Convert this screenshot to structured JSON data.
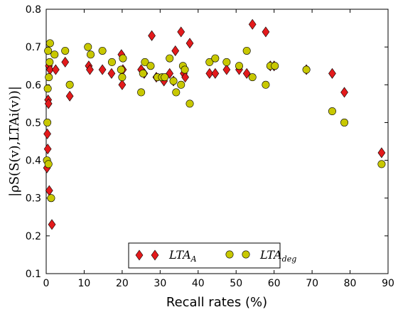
{
  "chart_data": {
    "type": "scatter",
    "xlabel": "Recall rates (%)",
    "ylabel": "|ρS(S(v),LTAi(v))|",
    "xlim": [
      0,
      90
    ],
    "ylim": [
      0.1,
      0.8
    ],
    "x_ticks": [
      "0",
      "10",
      "20",
      "30",
      "40",
      "50",
      "60",
      "70",
      "80",
      "90"
    ],
    "y_ticks": [
      "0.1",
      "0.2",
      "0.3",
      "0.4",
      "0.5",
      "0.6",
      "0.7",
      "0.8"
    ],
    "grid": false,
    "legend_position": "bottom-center",
    "series": [
      {
        "name": "LTA_A",
        "legend_main": "LTA",
        "legend_sub": "A",
        "marker": "diamond",
        "color": "#e31a1c",
        "points": [
          [
            0.2,
            0.38
          ],
          [
            0.3,
            0.47
          ],
          [
            0.4,
            0.43
          ],
          [
            0.5,
            0.56
          ],
          [
            0.6,
            0.55
          ],
          [
            0.7,
            0.65
          ],
          [
            0.8,
            0.32
          ],
          [
            1.0,
            0.64
          ],
          [
            1.5,
            0.23
          ],
          [
            2.5,
            0.64
          ],
          [
            5.0,
            0.66
          ],
          [
            6.2,
            0.57
          ],
          [
            11.2,
            0.65
          ],
          [
            11.5,
            0.64
          ],
          [
            14.8,
            0.64
          ],
          [
            17.2,
            0.63
          ],
          [
            19.8,
            0.68
          ],
          [
            20.0,
            0.6
          ],
          [
            20.2,
            0.64
          ],
          [
            25.0,
            0.64
          ],
          [
            25.8,
            0.63
          ],
          [
            27.8,
            0.73
          ],
          [
            29.0,
            0.62
          ],
          [
            31.0,
            0.61
          ],
          [
            32.5,
            0.63
          ],
          [
            33.5,
            0.61
          ],
          [
            34.0,
            0.69
          ],
          [
            35.5,
            0.74
          ],
          [
            36.2,
            0.63
          ],
          [
            36.6,
            0.62
          ],
          [
            37.8,
            0.71
          ],
          [
            43.0,
            0.63
          ],
          [
            44.5,
            0.63
          ],
          [
            47.5,
            0.64
          ],
          [
            50.8,
            0.64
          ],
          [
            52.8,
            0.63
          ],
          [
            54.3,
            0.76
          ],
          [
            57.8,
            0.74
          ],
          [
            59.0,
            0.65
          ],
          [
            60.0,
            0.65
          ],
          [
            68.5,
            0.64
          ],
          [
            75.3,
            0.63
          ],
          [
            78.5,
            0.58
          ],
          [
            88.3,
            0.42
          ]
        ]
      },
      {
        "name": "LTA_deg",
        "legend_main": "LTA",
        "legend_sub": "deg",
        "marker": "circle",
        "color": "#c8c800",
        "points": [
          [
            0.2,
            0.4
          ],
          [
            0.3,
            0.5
          ],
          [
            0.4,
            0.59
          ],
          [
            0.5,
            0.69
          ],
          [
            0.6,
            0.39
          ],
          [
            0.7,
            0.62
          ],
          [
            0.9,
            0.66
          ],
          [
            1.0,
            0.71
          ],
          [
            1.3,
            0.3
          ],
          [
            2.2,
            0.68
          ],
          [
            5.0,
            0.69
          ],
          [
            6.2,
            0.6
          ],
          [
            11.0,
            0.7
          ],
          [
            11.7,
            0.68
          ],
          [
            14.8,
            0.69
          ],
          [
            17.3,
            0.66
          ],
          [
            19.7,
            0.64
          ],
          [
            20.0,
            0.62
          ],
          [
            20.2,
            0.67
          ],
          [
            25.0,
            0.58
          ],
          [
            25.5,
            0.63
          ],
          [
            26.0,
            0.66
          ],
          [
            27.5,
            0.65
          ],
          [
            29.3,
            0.62
          ],
          [
            30.5,
            0.62
          ],
          [
            31.2,
            0.62
          ],
          [
            32.5,
            0.67
          ],
          [
            33.5,
            0.61
          ],
          [
            34.2,
            0.58
          ],
          [
            35.5,
            0.6
          ],
          [
            36.0,
            0.65
          ],
          [
            36.5,
            0.64
          ],
          [
            37.8,
            0.55
          ],
          [
            43.0,
            0.66
          ],
          [
            44.5,
            0.67
          ],
          [
            47.5,
            0.66
          ],
          [
            50.8,
            0.65
          ],
          [
            52.8,
            0.69
          ],
          [
            54.3,
            0.62
          ],
          [
            57.8,
            0.6
          ],
          [
            59.0,
            0.65
          ],
          [
            60.2,
            0.65
          ],
          [
            68.5,
            0.64
          ],
          [
            75.3,
            0.53
          ],
          [
            78.5,
            0.5
          ],
          [
            88.3,
            0.39
          ]
        ]
      }
    ]
  }
}
